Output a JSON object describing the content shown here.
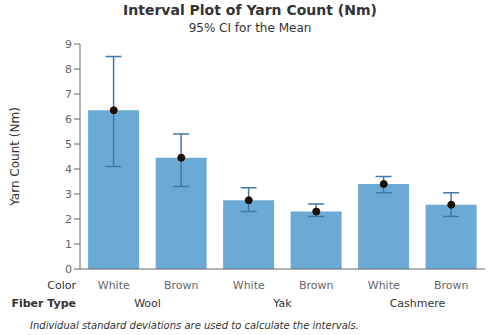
{
  "chart_data": {
    "type": "bar",
    "title": "Interval Plot of Yarn Count (Nm)",
    "subtitle": "95% CI for the Mean",
    "ylabel": "Yarn Count (Nm)",
    "xlabel_rows": [
      "Color",
      "Fiber Type"
    ],
    "footnote": "Individual standard deviations are used to calculate the intervals.",
    "categories": [
      "White",
      "Brown",
      "White",
      "Brown",
      "White",
      "Brown"
    ],
    "groups": [
      "Wool",
      "Yak",
      "Cashmere"
    ],
    "values": [
      6.35,
      4.45,
      2.75,
      2.3,
      3.4,
      2.57
    ],
    "ci_lower": [
      4.1,
      3.3,
      2.3,
      2.1,
      3.05,
      2.1
    ],
    "ci_upper": [
      8.5,
      5.4,
      3.25,
      2.6,
      3.7,
      3.05
    ],
    "color": "#6aaad4",
    "ylim": [
      0,
      9
    ],
    "yticks": [
      0,
      1,
      2,
      3,
      4,
      5,
      6,
      7,
      8,
      9
    ],
    "grid": false
  }
}
